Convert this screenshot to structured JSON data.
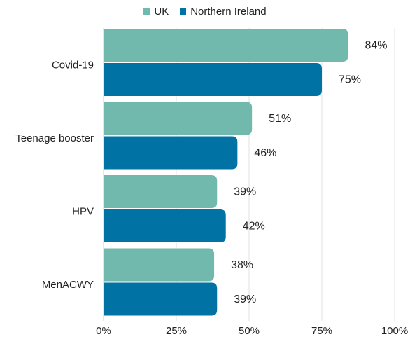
{
  "chart_data": {
    "type": "bar",
    "orientation": "horizontal",
    "categories": [
      "Covid-19",
      "Teenage booster",
      "HPV",
      "MenACWY"
    ],
    "series": [
      {
        "name": "UK",
        "color": "#72b9ad",
        "values": [
          84,
          51,
          39,
          38
        ],
        "labels": [
          "84%",
          "51%",
          "39%",
          "38%"
        ]
      },
      {
        "name": "Northern Ireland",
        "color": "#0072a3",
        "values": [
          75,
          46,
          42,
          39
        ],
        "labels": [
          "75%",
          "46%",
          "42%",
          "39%"
        ]
      }
    ],
    "xticks": [
      0,
      25,
      50,
      75,
      100
    ],
    "xtick_labels": [
      "0%",
      "25%",
      "50%",
      "75%",
      "100%"
    ],
    "xlim": [
      0,
      100
    ],
    "legend_position": "top-center",
    "grid": true
  }
}
